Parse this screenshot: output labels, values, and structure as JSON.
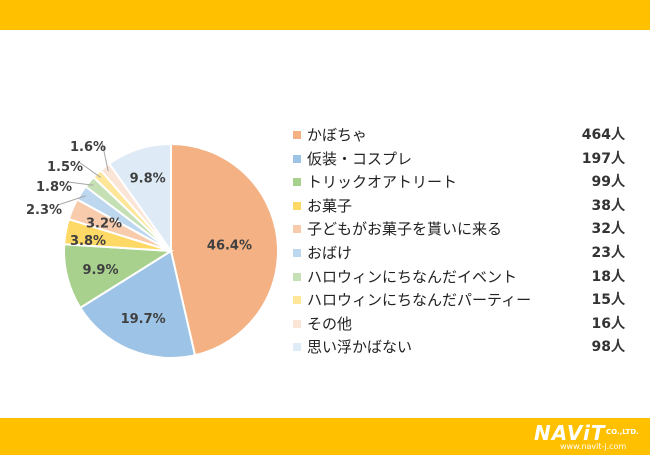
{
  "colors": {
    "band": "#ffc000",
    "slices": [
      "#f4b183",
      "#9dc3e6",
      "#a9d18e",
      "#ffd966",
      "#f8cbad",
      "#bdd7ee",
      "#c5e0b4",
      "#ffe699",
      "#fbe5d6",
      "#deebf7"
    ]
  },
  "logo": {
    "main": "NAViT",
    "suffix": "CO.,LTD.",
    "url": "www.navit-j.com"
  },
  "chart_data": {
    "type": "pie",
    "categories": [
      "かぼちゃ",
      "仮装・コスプレ",
      "トリックオアトリート",
      "お菓子",
      "子どもがお菓子を貰いに来る",
      "おばけ",
      "ハロウィンにちなんだイベント",
      "ハロウィンにちなんだパーティー",
      "その他",
      "思い浮かばない"
    ],
    "values": [
      46.4,
      19.7,
      9.9,
      3.8,
      3.2,
      2.3,
      1.8,
      1.5,
      1.6,
      9.8
    ],
    "data_labels": [
      "46.4%",
      "19.7%",
      "9.9%",
      "3.8%",
      "3.2%",
      "2.3%",
      "1.8%",
      "1.5%",
      "1.6%",
      "9.8%"
    ],
    "counts": [
      "464人",
      "197人",
      "99人",
      "38人",
      "32人",
      "23人",
      "18人",
      "15人",
      "16人",
      "98人"
    ],
    "legend": "right"
  }
}
